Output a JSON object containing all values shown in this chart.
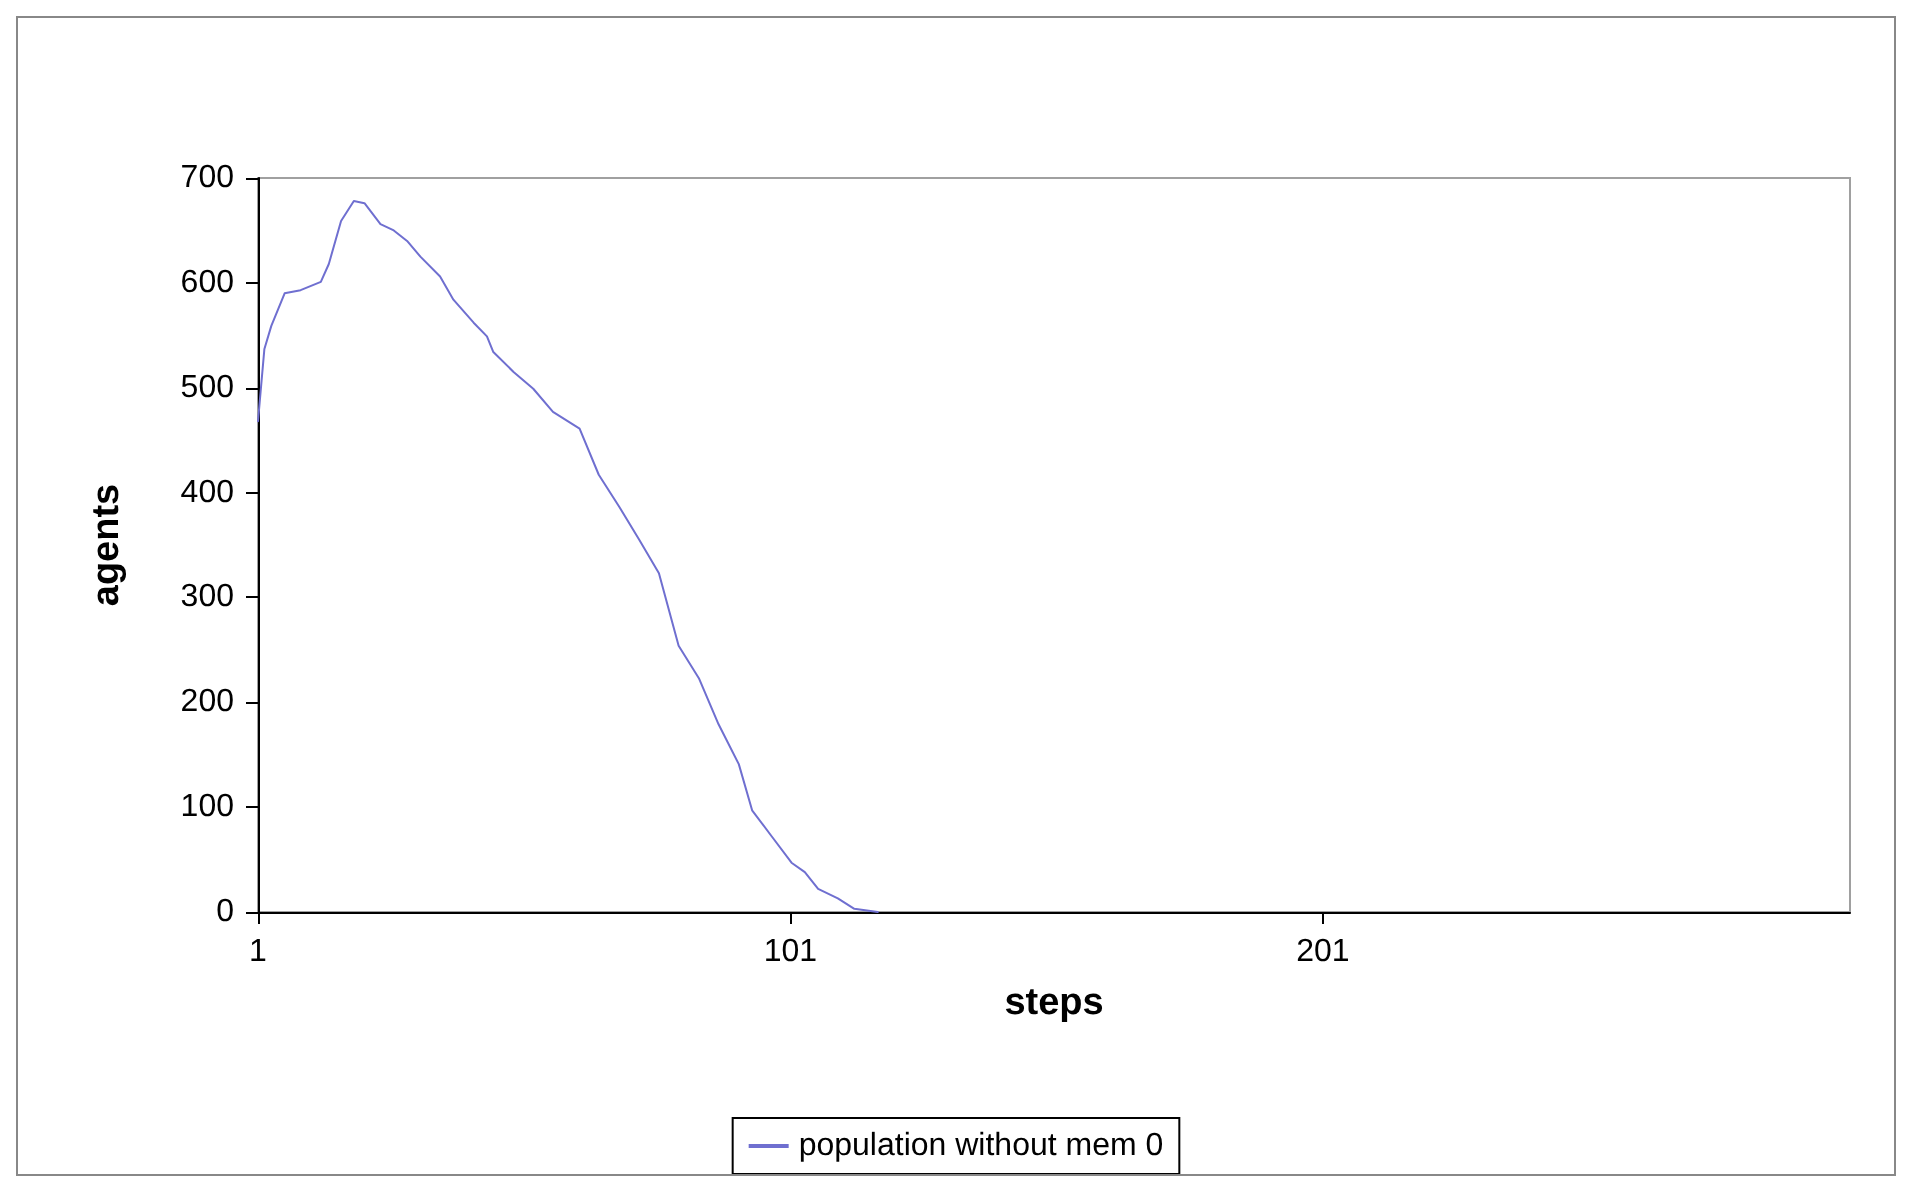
{
  "chart_data": {
    "type": "line",
    "xlabel": "steps",
    "ylabel": "agents",
    "series": [
      {
        "name": "population without mem 0",
        "color": "#6f6fd0",
        "x": [
          1,
          2.2,
          3.5,
          6,
          9,
          12.8,
          14.3,
          16.6,
          19,
          21,
          24,
          26.5,
          29,
          31.5,
          35.2,
          37.7,
          41.5,
          44,
          45.2,
          49,
          52.7,
          56.4,
          61.4,
          65,
          68.9,
          72.6,
          76.3,
          80,
          83.8,
          87.5,
          91.3,
          93.8,
          97.5,
          101.2,
          103.7,
          106.2,
          109.9,
          113,
          117.4
        ],
        "values": [
          468,
          537,
          559,
          590,
          593,
          601,
          618,
          659,
          678,
          676,
          656,
          650,
          640,
          625,
          606,
          584,
          562,
          549,
          534,
          515,
          499,
          477,
          461,
          417,
          386,
          355,
          323,
          254,
          223,
          179,
          141,
          97,
          72,
          47,
          38,
          22,
          13,
          3,
          0
        ]
      }
    ],
    "xlim": [
      1,
      300
    ],
    "xticks": [
      1,
      101,
      201
    ],
    "ylim": [
      0,
      700
    ],
    "yticks": [
      0,
      100,
      200,
      300,
      400,
      500,
      600,
      700
    ],
    "grid": false,
    "legend": "bottom",
    "marker": "none",
    "line_style": "solid"
  }
}
